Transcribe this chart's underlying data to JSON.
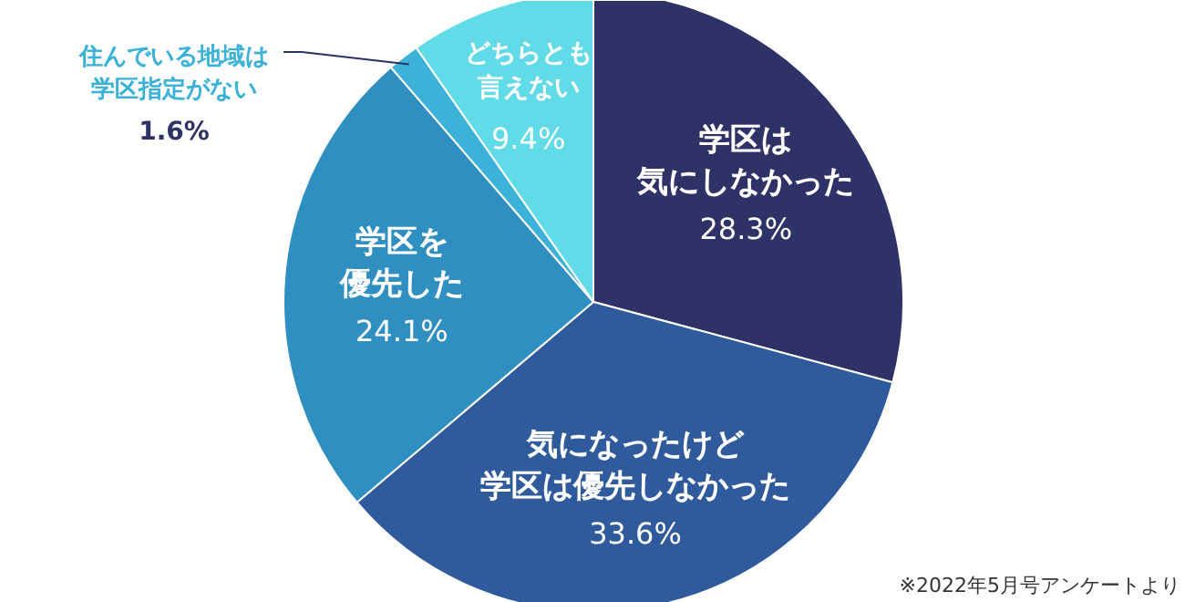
{
  "chart_data": {
    "type": "pie",
    "categories": [
      "学区は気にしなかった",
      "気になったけど学区は優先しなかった",
      "学区を優先した",
      "住んでいる地域は学区指定がない",
      "どちらとも言えない"
    ],
    "values": [
      28.3,
      33.6,
      24.1,
      1.6,
      9.4
    ],
    "value_labels": [
      "28.3%",
      "33.6%",
      "24.1%",
      "1.6%",
      "9.4%"
    ],
    "colors": [
      "#2e3266",
      "#2f5b9c",
      "#2f8fc1",
      "#3cb2d8",
      "#62dbe8"
    ],
    "annotations": [
      "※2022年5月号アンケートより"
    ]
  }
}
